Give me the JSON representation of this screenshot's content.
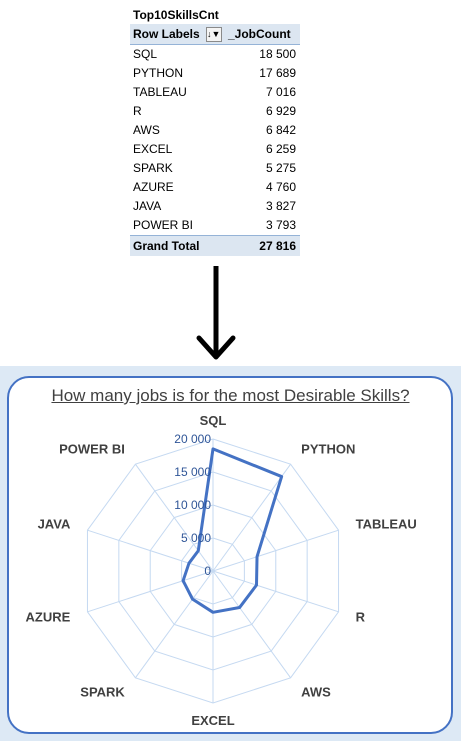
{
  "pivot": {
    "title": "Top10SkillsCnt",
    "header_label": "Row Labels",
    "filter_icon": "sort-filter-icon",
    "header_value": "_JobCount",
    "rows": [
      {
        "label": "SQL",
        "value": "18 500"
      },
      {
        "label": "PYTHON",
        "value": "17 689"
      },
      {
        "label": "TABLEAU",
        "value": "7 016"
      },
      {
        "label": "R",
        "value": "6 929"
      },
      {
        "label": "AWS",
        "value": "6 842"
      },
      {
        "label": "EXCEL",
        "value": "6 259"
      },
      {
        "label": "SPARK",
        "value": "5 275"
      },
      {
        "label": "AZURE",
        "value": "4 760"
      },
      {
        "label": "JAVA",
        "value": "3 827"
      },
      {
        "label": "POWER BI",
        "value": "3 793"
      }
    ],
    "total_label": "Grand Total",
    "total_value": "27 816"
  },
  "arrow_icon": "down-arrow-icon",
  "chart_data": {
    "type": "radar",
    "title": "How many jobs is for the most Desirable Skills?",
    "categories": [
      "SQL",
      "PYTHON",
      "TABLEAU",
      "R",
      "AWS",
      "EXCEL",
      "SPARK",
      "AZURE",
      "JAVA",
      "POWER BI"
    ],
    "series": [
      {
        "values": [
          18500,
          17689,
          7016,
          6929,
          6842,
          6259,
          5275,
          4760,
          3827,
          3793
        ]
      }
    ],
    "rlim": [
      0,
      20000
    ],
    "ticks": [
      0,
      5000,
      10000,
      15000,
      20000
    ],
    "tick_labels": [
      "0",
      "5 000",
      "10 000",
      "15 000",
      "20 000"
    ],
    "legend": "none",
    "grid": true,
    "colors": {
      "series": "#4472c4",
      "grid": "#c5d9f1",
      "labels": "#404040",
      "tick_labels": "#2f5597",
      "border": "#4472c4",
      "frame_bg": "#dde9f5"
    }
  }
}
